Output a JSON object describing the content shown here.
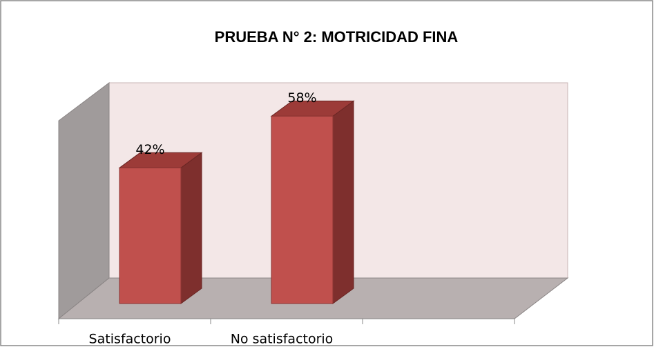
{
  "chart_data": {
    "type": "bar3d",
    "title": "PRUEBA N° 2:  MOTRICIDAD FINA",
    "categories": [
      "Satisfactorio",
      "No satisfactorio",
      null
    ],
    "values": [
      42,
      58,
      null
    ],
    "value_labels": [
      "42%",
      "58%",
      null
    ],
    "color": "#c0504d",
    "ylim": [
      0,
      60
    ]
  }
}
